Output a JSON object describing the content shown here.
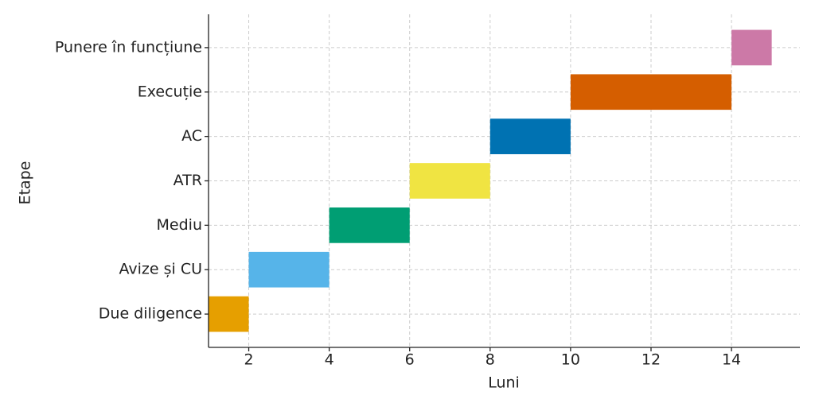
{
  "chart_data": {
    "type": "gantt",
    "xlabel": "Luni",
    "ylabel": "Etape",
    "categories": [
      "Due diligence",
      "Avize și CU",
      "Mediu",
      "ATR",
      "AC",
      "Execuție",
      "Punere în funcțiune"
    ],
    "start": [
      1,
      2,
      4,
      6,
      8,
      10,
      14
    ],
    "duration": [
      1,
      2,
      2,
      2,
      2,
      4,
      1
    ],
    "colors": [
      "#e69f00",
      "#56b4e9",
      "#009e73",
      "#f0e442",
      "#0072b2",
      "#d55e00",
      "#cc79a7"
    ],
    "xlim": [
      1,
      15.7
    ],
    "xticks": [
      2,
      4,
      6,
      8,
      10,
      12,
      14
    ],
    "grid": true
  }
}
